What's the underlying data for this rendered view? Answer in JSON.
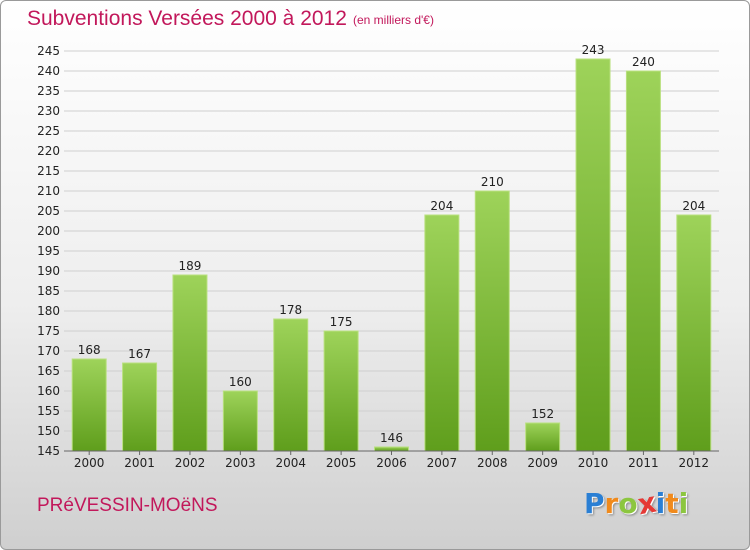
{
  "title": "Subventions Versées 2000 à 2012",
  "subtitle": "(en milliers d'€)",
  "commune": "PRéVESSIN-MOëNS",
  "logo": {
    "text": "Proxiti",
    "letters": [
      {
        "ch": "P",
        "color": "#2a7fd4"
      },
      {
        "ch": "r",
        "color": "#f08a1c"
      },
      {
        "ch": "o",
        "color": "#8cc63f"
      },
      {
        "ch": "x",
        "color": "#e53935"
      },
      {
        "ch": "i",
        "color": "#2a7fd4"
      },
      {
        "ch": "t",
        "color": "#f08a1c"
      },
      {
        "ch": "i",
        "color": "#8cc63f"
      }
    ]
  },
  "colors": {
    "bar_light": "#9ed35a",
    "bar_dark": "#5f9e1c",
    "grid": "#cfcfcf",
    "text": "#222222",
    "accent": "#c2185b"
  },
  "chart_data": {
    "type": "bar",
    "title": "Subventions Versées 2000 à 2012",
    "subtitle": "(en milliers d'€)",
    "categories": [
      "2000",
      "2001",
      "2002",
      "2003",
      "2004",
      "2005",
      "2006",
      "2007",
      "2008",
      "2009",
      "2010",
      "2011",
      "2012"
    ],
    "values": [
      168,
      167,
      189,
      160,
      178,
      175,
      146,
      204,
      210,
      152,
      243,
      240,
      204
    ],
    "value_labels": [
      "168",
      "167",
      "189",
      "160",
      "178",
      "175",
      "146",
      "204",
      "210",
      "152",
      "243",
      "240",
      "204"
    ],
    "ylim": [
      145,
      245
    ],
    "ytick_step": 5,
    "ytick_labels": [
      "145",
      "150",
      "155",
      "160",
      "165",
      "170",
      "175",
      "180",
      "185",
      "190",
      "195",
      "200",
      "205",
      "210",
      "215",
      "220",
      "225",
      "230",
      "235",
      "240",
      "245"
    ],
    "grid": true,
    "legend": "none"
  }
}
